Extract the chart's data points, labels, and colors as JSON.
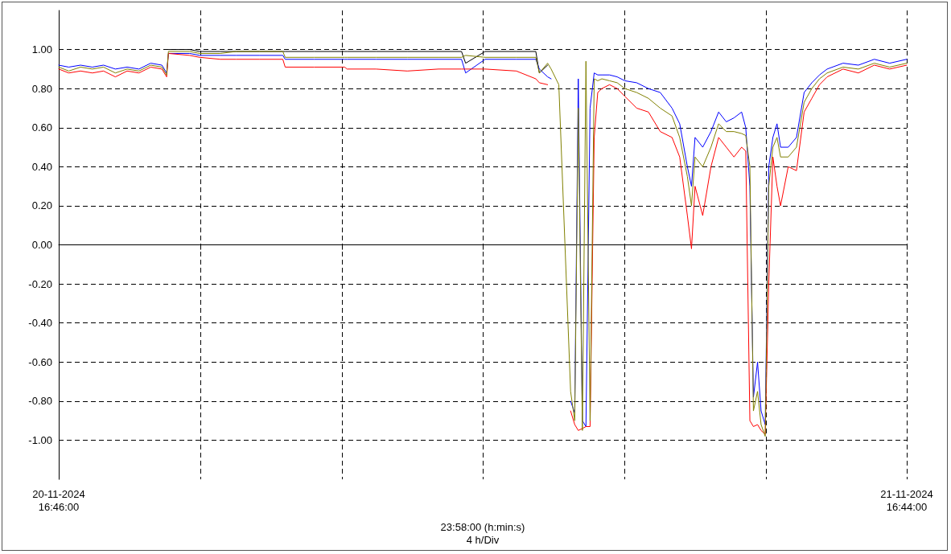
{
  "chart_data": {
    "type": "line",
    "xlabel": "23:58:00 (h:min:s)\n4 h/Div",
    "x": [
      "2024-11-20T16:46",
      "2024-11-20T17:03",
      "2024-11-20T17:23",
      "2024-11-20T17:43",
      "2024-11-20T18:02",
      "2024-11-20T18:22",
      "2024-11-20T18:42",
      "2024-11-20T19:02",
      "2024-11-20T19:22",
      "2024-11-20T19:41",
      "2024-11-20T19:49",
      "2024-11-20T19:52",
      "2024-11-20T20:28",
      "2024-11-20T20:45",
      "2024-11-20T21:20",
      "2024-11-20T21:47",
      "2024-11-20T22:26",
      "2024-11-20T23:06",
      "2024-11-20T23:10",
      "2024-11-20T23:59",
      "2024-11-21T00:51",
      "2024-11-21T00:55",
      "2024-11-21T01:44",
      "2024-11-21T02:37",
      "2024-11-21T03:30",
      "2024-11-21T04:09",
      "2024-11-21T04:16",
      "2024-11-21T04:49",
      "2024-11-21T05:42",
      "2024-11-21T06:15",
      "2024-11-21T06:21",
      "2024-11-21T06:35",
      "2024-11-21T06:41",
      "2024-11-21T06:54",
      "2024-11-21T07:14",
      "2024-11-21T07:21",
      "2024-11-21T07:27",
      "2024-11-21T07:34",
      "2024-11-21T07:40",
      "2024-11-21T07:47",
      "2024-11-21T07:54",
      "2024-11-21T08:00",
      "2024-11-21T08:07",
      "2024-11-21T08:20",
      "2024-11-21T08:33",
      "2024-11-21T08:46",
      "2024-11-21T09:06",
      "2024-11-21T09:26",
      "2024-11-21T09:46",
      "2024-11-21T10:06",
      "2024-11-21T10:19",
      "2024-11-21T10:32",
      "2024-11-21T10:39",
      "2024-11-21T10:45",
      "2024-11-21T10:58",
      "2024-11-21T11:12",
      "2024-11-21T11:25",
      "2024-11-21T11:38",
      "2024-11-21T11:51",
      "2024-11-21T12:04",
      "2024-11-21T12:11",
      "2024-11-21T12:18",
      "2024-11-21T12:24",
      "2024-11-21T12:31",
      "2024-11-21T12:37",
      "2024-11-21T12:44",
      "2024-11-21T12:50",
      "2024-11-21T12:57",
      "2024-11-21T13:04",
      "2024-11-21T13:10",
      "2024-11-21T13:23",
      "2024-11-21T13:37",
      "2024-11-21T13:50",
      "2024-11-21T14:03",
      "2024-11-21T14:16",
      "2024-11-21T14:29",
      "2024-11-21T14:56",
      "2024-11-21T15:22",
      "2024-11-21T15:49",
      "2024-11-21T16:15",
      "2024-11-21T16:44"
    ],
    "series": [
      {
        "color": "#000000",
        "values": [
          null,
          null,
          null,
          null,
          null,
          null,
          null,
          null,
          null,
          null,
          null,
          1.0,
          1.0,
          0.99,
          0.99,
          0.99,
          0.99,
          0.99,
          0.99,
          0.99,
          0.99,
          0.99,
          0.99,
          0.99,
          0.99,
          0.99,
          0.93,
          0.99,
          0.99,
          0.99,
          0.88,
          0.92,
          null,
          null,
          null,
          null,
          null,
          null,
          null,
          null,
          null,
          null,
          null,
          null,
          null,
          null,
          null,
          null,
          null,
          null,
          null,
          null,
          null,
          null,
          null,
          null,
          null,
          null,
          null,
          null,
          null,
          null,
          null,
          null,
          null,
          null,
          null,
          null,
          null,
          null,
          null,
          null,
          null,
          null,
          null,
          null,
          null,
          null,
          null,
          null,
          null
        ]
      },
      {
        "color": "#0000ff",
        "values": [
          0.92,
          0.91,
          0.92,
          0.91,
          0.92,
          0.9,
          0.91,
          0.9,
          0.93,
          0.92,
          0.88,
          0.98,
          0.98,
          0.97,
          0.97,
          0.97,
          0.97,
          0.97,
          0.95,
          0.95,
          0.95,
          0.95,
          0.95,
          0.95,
          0.95,
          0.95,
          0.88,
          0.95,
          0.95,
          0.95,
          0.9,
          0.86,
          0.85,
          null,
          -0.8,
          -0.86,
          0.85,
          -0.9,
          -0.93,
          0.7,
          0.88,
          0.87,
          0.87,
          0.87,
          0.86,
          0.84,
          0.83,
          0.8,
          0.78,
          0.7,
          0.62,
          0.4,
          0.3,
          0.55,
          0.5,
          0.58,
          0.68,
          0.63,
          0.65,
          0.68,
          0.6,
          0.3,
          -0.78,
          -0.6,
          -0.85,
          -0.92,
          0.4,
          0.55,
          0.62,
          0.5,
          0.5,
          0.55,
          0.78,
          0.83,
          0.87,
          0.9,
          0.93,
          0.92,
          0.95,
          0.93,
          0.95
        ]
      },
      {
        "color": "#ff0000",
        "values": [
          0.9,
          0.88,
          0.89,
          0.88,
          0.89,
          0.86,
          0.89,
          0.88,
          0.91,
          0.9,
          0.86,
          0.98,
          0.97,
          0.96,
          0.95,
          0.95,
          0.95,
          0.95,
          0.91,
          0.91,
          0.91,
          0.9,
          0.9,
          0.89,
          0.9,
          0.9,
          0.9,
          0.9,
          0.89,
          0.85,
          0.83,
          0.82,
          null,
          null,
          -0.85,
          -0.92,
          -0.95,
          -0.94,
          -0.93,
          -0.93,
          0.55,
          0.78,
          0.8,
          0.82,
          0.8,
          0.76,
          0.7,
          0.68,
          0.58,
          0.55,
          0.45,
          0.15,
          -0.02,
          0.3,
          0.15,
          0.4,
          0.55,
          0.5,
          0.45,
          0.5,
          0.48,
          -0.9,
          -0.93,
          -0.92,
          -0.95,
          -0.97,
          -0.2,
          0.45,
          0.3,
          0.2,
          0.4,
          0.38,
          0.68,
          0.75,
          0.82,
          0.86,
          0.9,
          0.88,
          0.92,
          0.9,
          0.92
        ]
      },
      {
        "color": "#808000",
        "values": [
          0.91,
          0.89,
          0.91,
          0.9,
          0.91,
          0.88,
          0.9,
          0.89,
          0.92,
          0.91,
          0.87,
          0.99,
          0.99,
          0.98,
          0.98,
          0.99,
          0.99,
          0.99,
          0.96,
          0.96,
          0.96,
          0.96,
          0.96,
          0.96,
          0.96,
          0.96,
          0.97,
          0.96,
          0.96,
          0.96,
          0.88,
          0.93,
          0.9,
          0.82,
          -0.75,
          -0.9,
          0.7,
          -0.95,
          0.94,
          -0.9,
          0.85,
          0.84,
          0.85,
          0.84,
          0.83,
          0.8,
          0.78,
          0.75,
          0.7,
          0.66,
          0.55,
          0.35,
          0.2,
          0.45,
          0.4,
          0.5,
          0.62,
          0.58,
          0.58,
          0.57,
          0.56,
          0.4,
          -0.85,
          -0.75,
          -0.92,
          -0.98,
          0.3,
          0.5,
          0.55,
          0.45,
          0.45,
          0.5,
          0.73,
          0.8,
          0.85,
          0.88,
          0.91,
          0.9,
          0.93,
          0.91,
          0.93
        ]
      }
    ],
    "xlim": [
      "2024-11-20T16:46",
      "2024-11-21T16:44"
    ],
    "xticks": [
      {
        "value": "2024-11-20T16:46",
        "label": "20-11-2024\n16:46:00"
      },
      {
        "value": "2024-11-20T20:46",
        "label": null
      },
      {
        "value": "2024-11-21T00:46",
        "label": null
      },
      {
        "value": "2024-11-21T04:46",
        "label": null
      },
      {
        "value": "2024-11-21T08:46",
        "label": null
      },
      {
        "value": "2024-11-21T12:46",
        "label": null
      },
      {
        "value": "2024-11-21T16:44",
        "label": "21-11-2024\n16:44:00"
      }
    ],
    "ylim": [
      -1.2,
      1.2
    ],
    "yticks": [
      {
        "value": -1,
        "label": "-1.00"
      },
      {
        "value": -0.8,
        "label": "-0.80"
      },
      {
        "value": -0.6,
        "label": "-0.60"
      },
      {
        "value": -0.4,
        "label": "-0.40"
      },
      {
        "value": -0.2,
        "label": "-0.20"
      },
      {
        "value": 0,
        "label": "0.00"
      },
      {
        "value": 0.2,
        "label": "0.20"
      },
      {
        "value": 0.4,
        "label": "0.40"
      },
      {
        "value": 0.6,
        "label": "0.60"
      },
      {
        "value": 0.8,
        "label": "0.80"
      },
      {
        "value": 1,
        "label": "1.00"
      }
    ],
    "grid": true,
    "marker": "none",
    "line_style": "solid"
  }
}
